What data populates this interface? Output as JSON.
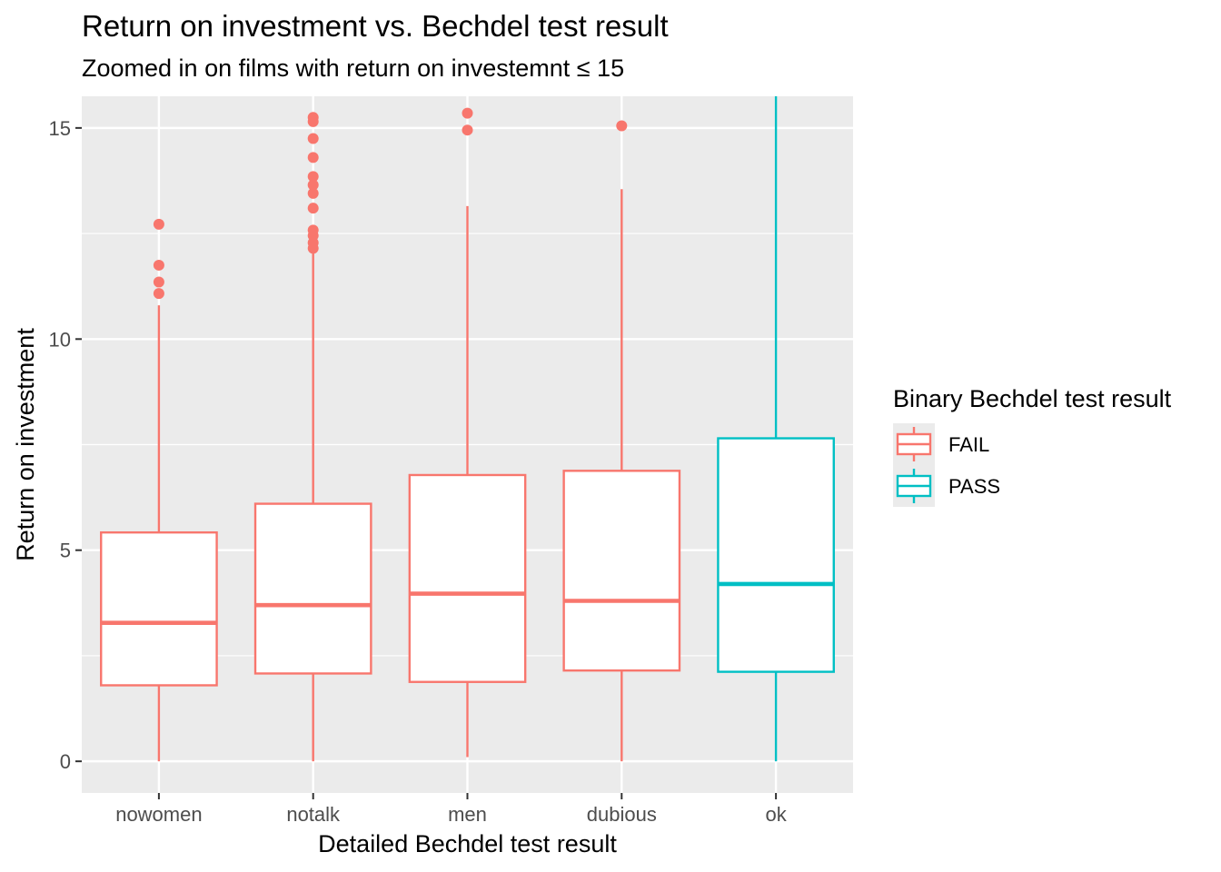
{
  "chart_data": {
    "type": "boxplot",
    "title": "Return on investment vs. Bechdel test result",
    "subtitle": "Zoomed in on films with return on investemnt ≤ 15",
    "xlabel": "Detailed Bechdel test result",
    "ylabel": "Return on investment",
    "ylim": [
      -0.75,
      15.75
    ],
    "y_ticks": [
      0,
      5,
      10,
      15
    ],
    "y_tick_labels": [
      "0",
      "5",
      "10",
      "15"
    ],
    "grid": true,
    "categories": [
      "nowomen",
      "notalk",
      "men",
      "dubious",
      "ok"
    ],
    "boxes": [
      {
        "category": "nowomen",
        "group": "FAIL",
        "whisker_low": 0.0,
        "q1": 1.8,
        "median": 3.28,
        "q3": 5.42,
        "whisker_high": 10.8,
        "outliers": [
          11.08,
          11.35,
          11.75,
          12.72
        ]
      },
      {
        "category": "notalk",
        "group": "FAIL",
        "whisker_low": 0.0,
        "q1": 2.08,
        "median": 3.7,
        "q3": 6.1,
        "whisker_high": 12.1,
        "outliers": [
          12.15,
          12.28,
          12.45,
          12.58,
          13.1,
          13.45,
          13.65,
          13.85,
          14.3,
          14.75,
          15.15,
          15.25
        ]
      },
      {
        "category": "men",
        "group": "FAIL",
        "whisker_low": 0.1,
        "q1": 1.88,
        "median": 3.97,
        "q3": 6.78,
        "whisker_high": 13.15,
        "outliers": [
          14.95,
          15.35
        ]
      },
      {
        "category": "dubious",
        "group": "FAIL",
        "whisker_low": 0.0,
        "q1": 2.15,
        "median": 3.8,
        "q3": 6.88,
        "whisker_high": 13.55,
        "outliers": [
          15.05
        ]
      },
      {
        "category": "ok",
        "group": "PASS",
        "whisker_low": 0.0,
        "q1": 2.12,
        "median": 4.2,
        "q3": 7.65,
        "whisker_high": 15.75,
        "outliers": []
      }
    ],
    "legend": {
      "title": "Binary Bechdel test result",
      "placement": "right",
      "entries": [
        {
          "label": "FAIL",
          "color": "#F8766D"
        },
        {
          "label": "PASS",
          "color": "#00BFC4"
        }
      ]
    },
    "colors": {
      "FAIL": "#F8766D",
      "PASS": "#00BFC4",
      "panel_background": "#EBEBEB",
      "grid": "#FFFFFF",
      "tick_text": "#4D4D4D",
      "tick_mark": "#333333"
    }
  }
}
